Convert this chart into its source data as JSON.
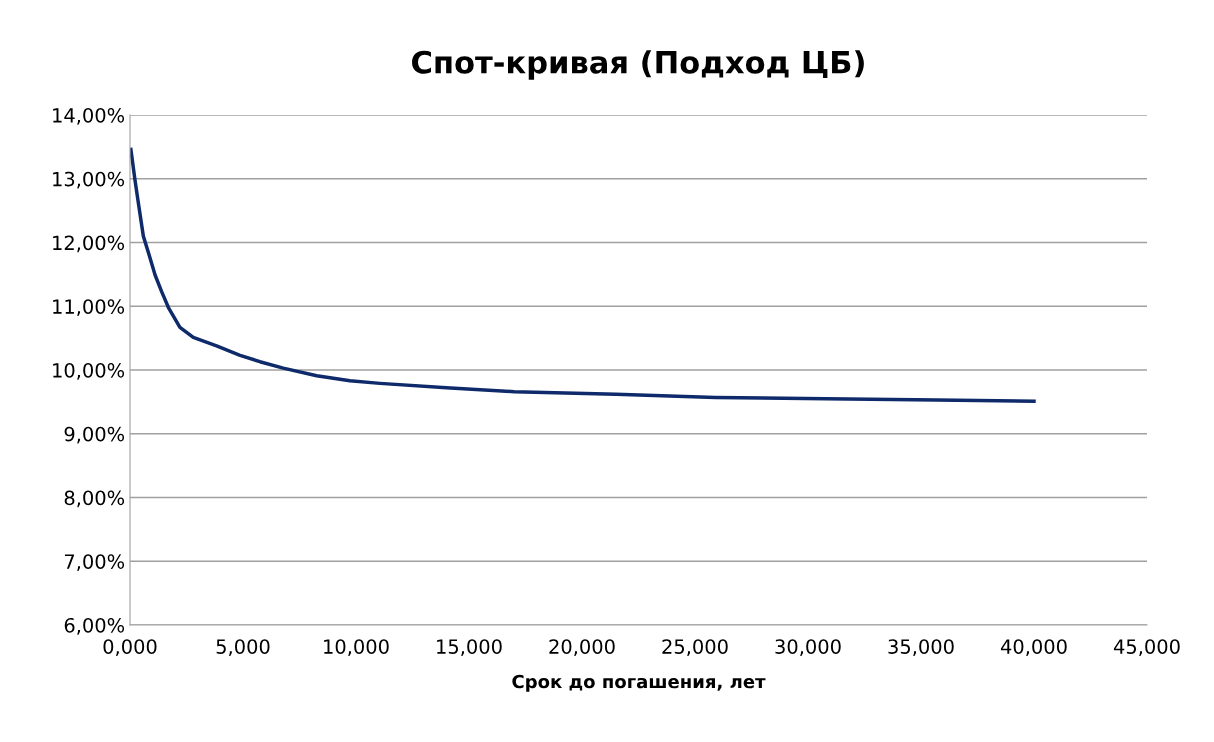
{
  "chart_data": {
    "type": "line",
    "title": "Спот-кривая (Подход ЦБ)",
    "xlabel": "Срок до погашения, лет",
    "x": [
      0.04,
      0.22,
      0.37,
      0.59,
      0.85,
      1.11,
      1.4,
      1.7,
      2.21,
      2.8,
      3.83,
      4.87,
      5.75,
      6.78,
      8.26,
      9.73,
      11.06,
      14.0,
      17.0,
      21.5,
      25.9,
      30.8,
      35.7,
      40.0
    ],
    "series": [
      {
        "color": "#0e2a6a",
        "values": [
          13.46,
          12.98,
          12.62,
          12.1,
          11.8,
          11.49,
          11.23,
          10.98,
          10.67,
          10.51,
          10.38,
          10.23,
          10.13,
          10.03,
          9.91,
          9.83,
          9.79,
          9.72,
          9.66,
          9.62,
          9.57,
          9.55,
          9.53,
          9.51
        ]
      }
    ],
    "xlim": [
      0,
      45
    ],
    "xticks": [
      {
        "value": 0,
        "label": "0,000"
      },
      {
        "value": 5,
        "label": "5,000"
      },
      {
        "value": 10,
        "label": "10,000"
      },
      {
        "value": 15,
        "label": "15,000"
      },
      {
        "value": 20,
        "label": "20,000"
      },
      {
        "value": 25,
        "label": "25,000"
      },
      {
        "value": 30,
        "label": "30,000"
      },
      {
        "value": 35,
        "label": "35,000"
      },
      {
        "value": 40,
        "label": "40,000"
      },
      {
        "value": 45,
        "label": "45,000"
      }
    ],
    "ylim": [
      6,
      14
    ],
    "yticks": [
      {
        "value": 6,
        "label": "6,00%"
      },
      {
        "value": 7,
        "label": "7,00%"
      },
      {
        "value": 8,
        "label": "8,00%"
      },
      {
        "value": 9,
        "label": "9,00%"
      },
      {
        "value": 10,
        "label": "10,00%"
      },
      {
        "value": 11,
        "label": "11,00%"
      },
      {
        "value": 12,
        "label": "12,00%"
      },
      {
        "value": 13,
        "label": "13,00%"
      },
      {
        "value": 14,
        "label": "14,00%"
      }
    ],
    "grid": "y",
    "marker": "none",
    "line_style": "solid"
  }
}
